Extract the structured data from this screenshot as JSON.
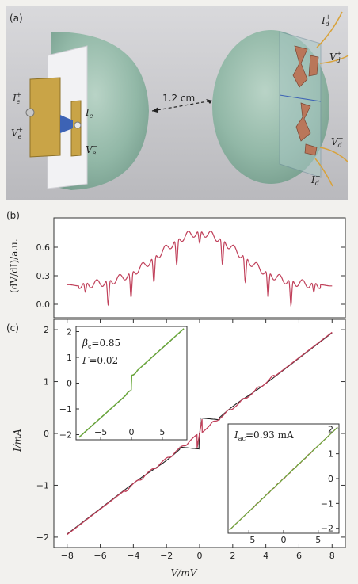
{
  "panel_a": {
    "label": "(a)",
    "distance": "1.2 cm",
    "left_labels": {
      "ie_plus_base": "I",
      "ie_plus_sub": "e",
      "ie_plus_sup": "+",
      "ve_plus_base": "V",
      "ve_plus_sub": "e",
      "ve_plus_sup": "+",
      "ie_minus_base": "I",
      "ie_minus_sub": "e",
      "ie_minus_sup": "−",
      "ve_minus_base": "V",
      "ve_minus_sub": "e",
      "ve_minus_sup": "−"
    },
    "right_labels": {
      "id_plus_base": "I",
      "id_plus_sub": "d",
      "id_plus_sup": "+",
      "vd_plus_base": "V",
      "vd_plus_sub": "d",
      "vd_plus_sup": "+",
      "vd_minus_base": "V",
      "vd_minus_sub": "d",
      "vd_minus_sup": "−",
      "id_minus_base": "I",
      "id_minus_sub": "d",
      "id_minus_sup": "−"
    }
  },
  "panel_b": {
    "label": "(b)",
    "ylabel": "(dV/dI)/a.u.",
    "ytick_labels": [
      "0.0",
      "0.3",
      "0.6"
    ]
  },
  "panel_c": {
    "label": "(c)",
    "ylabel": "I/mA",
    "xlabel": "V/mV",
    "xtick_labels": [
      "−8",
      "−6",
      "−4",
      "−2",
      "0",
      "2",
      "4",
      "6",
      "8"
    ],
    "ytick_labels": [
      "−2",
      "−1",
      "0",
      "1",
      "2"
    ],
    "inset1": {
      "beta_label": "β",
      "beta_sub": "c",
      "beta_value": "=0.85",
      "gamma_label": "Γ",
      "gamma_value": "=0.02",
      "xtick_labels": [
        "−5",
        "0",
        "5"
      ],
      "ytick_labels": [
        "−2",
        "−1",
        "0",
        "1",
        "2"
      ]
    },
    "inset2": {
      "iac_label": "I",
      "iac_sub": "ac",
      "iac_value": "=0.93 mA",
      "xtick_labels": [
        "−5",
        "0",
        "5"
      ],
      "ytick_labels": [
        "−2",
        "−1",
        "0",
        "1",
        "2"
      ]
    }
  },
  "chart_data": [
    {
      "type": "line",
      "panel": "(b)",
      "ylabel": "(dV/dI)/a.u.",
      "ylim": [
        -0.05,
        0.75
      ],
      "x": [
        -8,
        -7,
        -6,
        -5,
        -4,
        -3,
        -2,
        -1,
        0,
        1,
        2,
        3,
        4,
        5,
        6,
        7,
        8
      ],
      "series": [
        {
          "values": [
            0.21,
            0.22,
            0.25,
            0.28,
            0.33,
            0.38,
            0.45,
            0.55,
            0.62,
            0.55,
            0.45,
            0.38,
            0.33,
            0.28,
            0.25,
            0.22,
            0.21
          ]
        }
      ]
    },
    {
      "type": "line",
      "panel": "(c)",
      "xlabel": "V/mV",
      "ylabel": "I/mA",
      "xlim": [
        -8.8,
        8.8
      ],
      "ylim": [
        -2.2,
        2.2
      ],
      "series": [
        {
          "x": [
            -8,
            -6,
            -4,
            -2,
            -0.3,
            0,
            0.3,
            2,
            4,
            6,
            8
          ],
          "values": [
            -1.92,
            -1.45,
            -0.98,
            -0.5,
            -0.3,
            0,
            0.3,
            0.5,
            0.98,
            1.45,
            1.92
          ]
        },
        {
          "x": [
            -8,
            -6,
            -4,
            -2,
            -1,
            0,
            1,
            2,
            4,
            6,
            8
          ],
          "values": [
            -1.95,
            -1.47,
            -0.98,
            -0.55,
            -0.3,
            0,
            0.3,
            0.55,
            0.98,
            1.47,
            1.95
          ]
        }
      ]
    },
    {
      "type": "line",
      "panel": "(c) inset left",
      "xlim": [
        -9,
        9
      ],
      "ylim": [
        -2.2,
        2.2
      ],
      "series": [
        {
          "x": [
            -9,
            -4,
            -0.3,
            0,
            0.3,
            4,
            9
          ],
          "values": [
            -2.2,
            -1.05,
            -0.3,
            0,
            0.3,
            1.05,
            2.2
          ]
        }
      ]
    },
    {
      "type": "line",
      "panel": "(c) inset right",
      "xlim": [
        -8,
        8
      ],
      "ylim": [
        -2.2,
        2.2
      ],
      "series": [
        {
          "x": [
            -8,
            -4,
            0,
            4,
            8
          ],
          "values": [
            -2.1,
            -1.05,
            0,
            1.05,
            2.1
          ]
        }
      ]
    }
  ]
}
